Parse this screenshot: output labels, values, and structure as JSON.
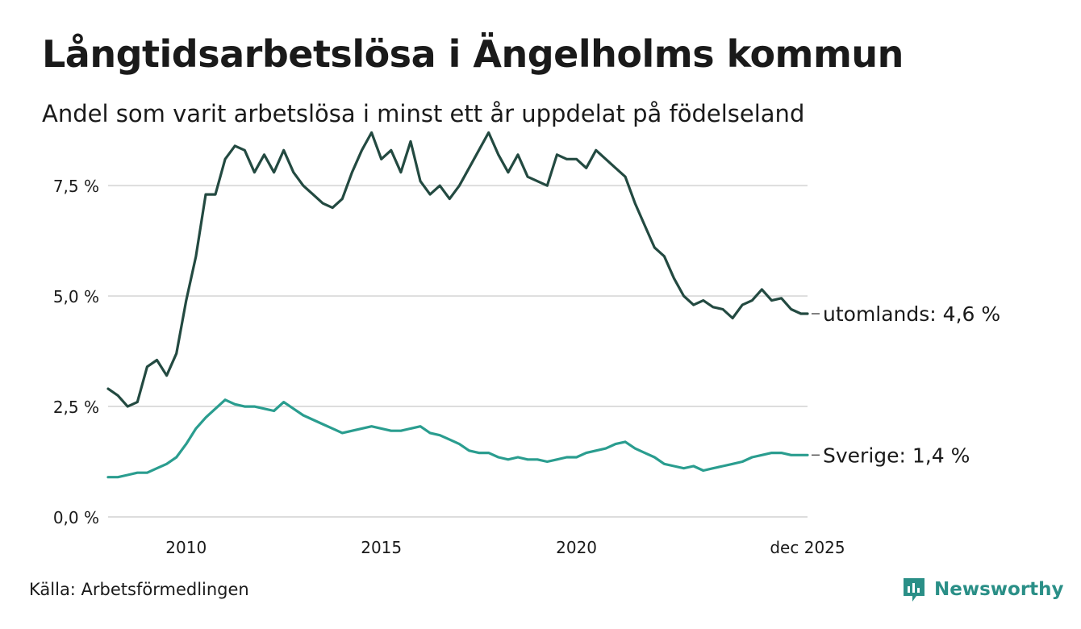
{
  "title": "Långtidsarbetslösa i Ängelholms kommun",
  "subtitle": "Andel som varit arbetslösa i minst ett år uppdelat på födelseland",
  "source": "Källa: Arbetsförmedlingen",
  "brand": {
    "name": "Newsworthy",
    "icon": "newsworthy-logo-icon",
    "color": "#2a8f87"
  },
  "chart_data": {
    "type": "line",
    "title": "Långtidsarbetslösa i Ängelholms kommun",
    "xlabel": "",
    "ylabel": "",
    "xlim": [
      2008.0,
      2025.92
    ],
    "ylim": [
      0,
      9.0
    ],
    "yticks": [
      0,
      2.5,
      5.0,
      7.5
    ],
    "ytick_labels": [
      "0,0 %",
      "2,5 %",
      "5,0 %",
      "7,5 %"
    ],
    "xticks": [
      2010,
      2015,
      2020,
      2025.92
    ],
    "xtick_labels": [
      "2010",
      "2015",
      "2020",
      "dec 2025"
    ],
    "grid": true,
    "series": [
      {
        "name": "utomlands",
        "label": "utomlands: 4,6 %",
        "color": "#234a41",
        "x": [
          2008.0,
          2008.25,
          2008.5,
          2008.75,
          2009.0,
          2009.25,
          2009.5,
          2009.75,
          2010.0,
          2010.25,
          2010.5,
          2010.75,
          2011.0,
          2011.25,
          2011.5,
          2011.75,
          2012.0,
          2012.25,
          2012.5,
          2012.75,
          2013.0,
          2013.25,
          2013.5,
          2013.75,
          2014.0,
          2014.25,
          2014.5,
          2014.75,
          2015.0,
          2015.25,
          2015.5,
          2015.75,
          2016.0,
          2016.25,
          2016.5,
          2016.75,
          2017.0,
          2017.25,
          2017.5,
          2017.75,
          2018.0,
          2018.25,
          2018.5,
          2018.75,
          2019.0,
          2019.25,
          2019.5,
          2019.75,
          2020.0,
          2020.25,
          2020.5,
          2020.75,
          2021.0,
          2021.25,
          2021.5,
          2021.75,
          2022.0,
          2022.25,
          2022.5,
          2022.75,
          2023.0,
          2023.25,
          2023.5,
          2023.75,
          2024.0,
          2024.25,
          2024.5,
          2024.75,
          2025.0,
          2025.25,
          2025.5,
          2025.75,
          2025.92
        ],
        "values": [
          2.9,
          2.75,
          2.5,
          2.6,
          3.4,
          3.55,
          3.2,
          3.7,
          4.9,
          5.9,
          7.3,
          7.3,
          8.1,
          8.4,
          8.3,
          7.8,
          8.2,
          7.8,
          8.3,
          7.8,
          7.5,
          7.3,
          7.1,
          7.0,
          7.2,
          7.8,
          8.3,
          8.7,
          8.1,
          8.3,
          7.8,
          8.5,
          7.6,
          7.3,
          7.5,
          7.2,
          7.5,
          7.9,
          8.3,
          8.7,
          8.2,
          7.8,
          8.2,
          7.7,
          7.6,
          7.5,
          8.2,
          8.1,
          8.1,
          7.9,
          8.3,
          8.1,
          7.9,
          7.7,
          7.1,
          6.6,
          6.1,
          5.9,
          5.4,
          5.0,
          4.8,
          4.9,
          4.75,
          4.7,
          4.5,
          4.8,
          4.9,
          5.15,
          4.9,
          4.95,
          4.7,
          4.6,
          4.6
        ]
      },
      {
        "name": "Sverige",
        "label": "Sverige: 1,4 %",
        "color": "#2a9d8f",
        "x": [
          2008.0,
          2008.25,
          2008.5,
          2008.75,
          2009.0,
          2009.25,
          2009.5,
          2009.75,
          2010.0,
          2010.25,
          2010.5,
          2010.75,
          2011.0,
          2011.25,
          2011.5,
          2011.75,
          2012.0,
          2012.25,
          2012.5,
          2012.75,
          2013.0,
          2013.25,
          2013.5,
          2013.75,
          2014.0,
          2014.25,
          2014.5,
          2014.75,
          2015.0,
          2015.25,
          2015.5,
          2015.75,
          2016.0,
          2016.25,
          2016.5,
          2016.75,
          2017.0,
          2017.25,
          2017.5,
          2017.75,
          2018.0,
          2018.25,
          2018.5,
          2018.75,
          2019.0,
          2019.25,
          2019.5,
          2019.75,
          2020.0,
          2020.25,
          2020.5,
          2020.75,
          2021.0,
          2021.25,
          2021.5,
          2021.75,
          2022.0,
          2022.25,
          2022.5,
          2022.75,
          2023.0,
          2023.25,
          2023.5,
          2023.75,
          2024.0,
          2024.25,
          2024.5,
          2024.75,
          2025.0,
          2025.25,
          2025.5,
          2025.75,
          2025.92
        ],
        "values": [
          0.9,
          0.9,
          0.95,
          1.0,
          1.0,
          1.1,
          1.2,
          1.35,
          1.65,
          2.0,
          2.25,
          2.45,
          2.65,
          2.55,
          2.5,
          2.5,
          2.45,
          2.4,
          2.6,
          2.45,
          2.3,
          2.2,
          2.1,
          2.0,
          1.9,
          1.95,
          2.0,
          2.05,
          2.0,
          1.95,
          1.95,
          2.0,
          2.05,
          1.9,
          1.85,
          1.75,
          1.65,
          1.5,
          1.45,
          1.45,
          1.35,
          1.3,
          1.35,
          1.3,
          1.3,
          1.25,
          1.3,
          1.35,
          1.35,
          1.45,
          1.5,
          1.55,
          1.65,
          1.7,
          1.55,
          1.45,
          1.35,
          1.2,
          1.15,
          1.1,
          1.15,
          1.05,
          1.1,
          1.15,
          1.2,
          1.25,
          1.35,
          1.4,
          1.45,
          1.45,
          1.4,
          1.4,
          1.4
        ]
      }
    ]
  }
}
